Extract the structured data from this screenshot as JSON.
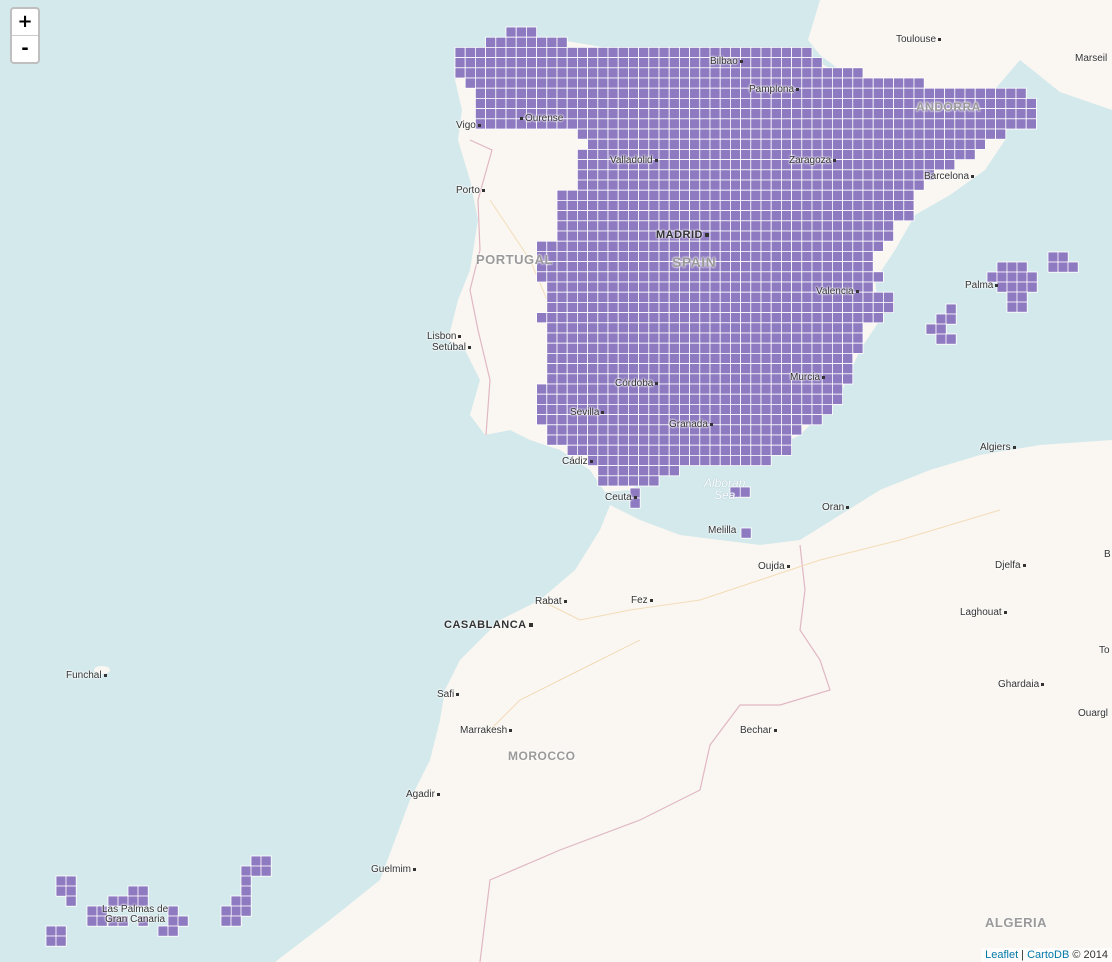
{
  "zoom": {
    "in_label": "+",
    "out_label": "-"
  },
  "attribution": {
    "leaflet": "Leaflet",
    "sep": " | ",
    "carto": "CartoDB",
    "copyright": " © 2014"
  },
  "colors": {
    "water": "#d4e9ec",
    "land": "#faf7f2",
    "cell": "#8e7ac0",
    "cell_border": "#ffffff",
    "border": "#e0b7c4"
  },
  "countries": {
    "portugal": "PORTUGAL",
    "spain": "SPAIN",
    "andorra": "ANDORRA",
    "morocco": "MOROCCO",
    "algeria": "ALGERIA"
  },
  "capitals": {
    "madrid": "MADRID",
    "casablanca": "CASABLANCA"
  },
  "seas": {
    "alboran_1": "Alboran",
    "alboran_2": "Sea"
  },
  "cities": {
    "toulouse": "Toulouse",
    "marseille": "Marseil",
    "bilbao": "Bilbao",
    "pamplona": "Pamplona",
    "vigo": "Vigo",
    "ourense": "Ourense",
    "valladolid": "Valladolid",
    "zaragoza": "Zaragoza",
    "barcelona": "Barcelona",
    "porto": "Porto",
    "valencia": "Valencia",
    "palma": "Palma",
    "lisbon": "Lisbon",
    "setubal": "Setúbal",
    "cordoba": "Córdoba",
    "murcia": "Murcia",
    "sevilla": "Sevilla",
    "granada": "Granada",
    "cadiz": "Cádiz",
    "algiers": "Algiers",
    "ceuta": "Ceuta",
    "oran": "Oran",
    "melilla": "Melilla",
    "oujda": "Oujda",
    "djelfa": "Djelfa",
    "rabat": "Rabat",
    "fez": "Fez",
    "laghouat": "Laghouat",
    "funchal": "Funchal",
    "safi": "Safi",
    "ghardaia": "Ghardaia",
    "ouargla": "Ouargl",
    "marrakesh": "Marrakesh",
    "bechar": "Bechar",
    "agadir": "Agadir",
    "guelmim": "Guelmim",
    "las_palmas_1": "Las Palmas de",
    "las_palmas_2": "Gran Canaria",
    "to": "To",
    "b": "B"
  }
}
